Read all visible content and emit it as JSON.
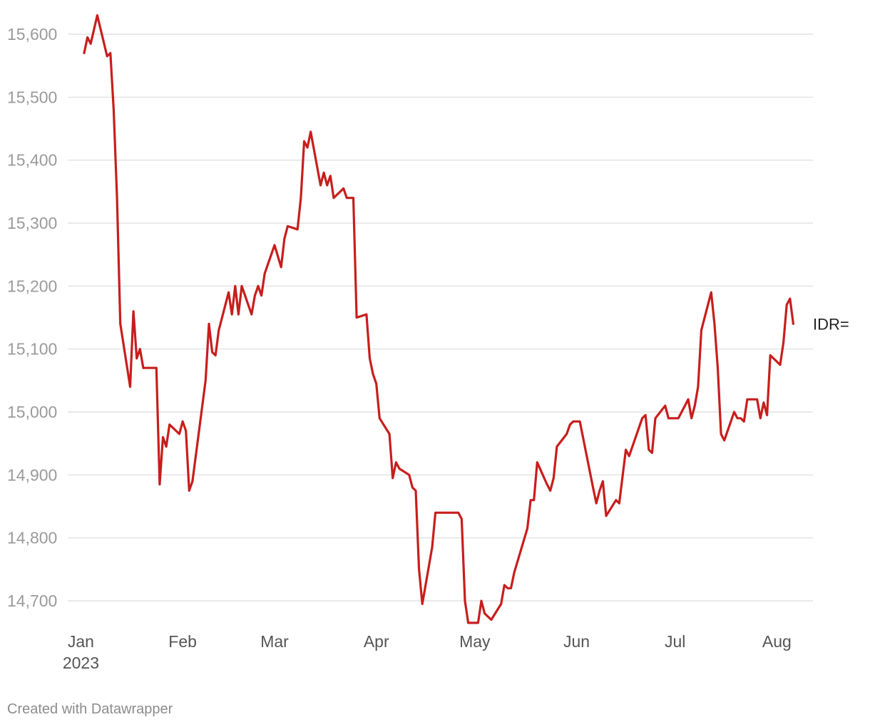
{
  "chart_data": {
    "type": "line",
    "title": "",
    "xlabel": "",
    "ylabel": "",
    "ylim": [
      14665,
      15630
    ],
    "y_ticks": [
      15600,
      15500,
      15400,
      15300,
      15200,
      15100,
      15000,
      14900,
      14800,
      14700
    ],
    "y_tick_labels": [
      "15,600",
      "15,500",
      "15,400",
      "15,300",
      "15,200",
      "15,100",
      "15,000",
      "14,900",
      "14,800",
      "14,700"
    ],
    "x_ticks": [
      {
        "date": "2023-01-01",
        "label": "Jan",
        "sublabel": "2023"
      },
      {
        "date": "2023-02-01",
        "label": "Feb"
      },
      {
        "date": "2023-03-01",
        "label": "Mar"
      },
      {
        "date": "2023-04-01",
        "label": "Apr"
      },
      {
        "date": "2023-05-01",
        "label": "May"
      },
      {
        "date": "2023-06-01",
        "label": "Jun"
      },
      {
        "date": "2023-07-01",
        "label": "Jul"
      },
      {
        "date": "2023-08-01",
        "label": "Aug"
      }
    ],
    "grid": true,
    "series": [
      {
        "name": "IDR=",
        "color": "#c71e1d",
        "points": [
          [
            "2023-01-02",
            15570
          ],
          [
            "2023-01-03",
            15595
          ],
          [
            "2023-01-04",
            15585
          ],
          [
            "2023-01-06",
            15630
          ],
          [
            "2023-01-09",
            15565
          ],
          [
            "2023-01-10",
            15570
          ],
          [
            "2023-01-11",
            15480
          ],
          [
            "2023-01-12",
            15340
          ],
          [
            "2023-01-13",
            15140
          ],
          [
            "2023-01-16",
            15040
          ],
          [
            "2023-01-17",
            15160
          ],
          [
            "2023-01-18",
            15085
          ],
          [
            "2023-01-19",
            15100
          ],
          [
            "2023-01-20",
            15070
          ],
          [
            "2023-01-24",
            15070
          ],
          [
            "2023-01-25",
            14885
          ],
          [
            "2023-01-26",
            14960
          ],
          [
            "2023-01-27",
            14945
          ],
          [
            "2023-01-28",
            14980
          ],
          [
            "2023-01-31",
            14965
          ],
          [
            "2023-02-01",
            14985
          ],
          [
            "2023-02-02",
            14970
          ],
          [
            "2023-02-03",
            14875
          ],
          [
            "2023-02-04",
            14890
          ],
          [
            "2023-02-06",
            14970
          ],
          [
            "2023-02-08",
            15050
          ],
          [
            "2023-02-09",
            15140
          ],
          [
            "2023-02-10",
            15095
          ],
          [
            "2023-02-11",
            15090
          ],
          [
            "2023-02-12",
            15130
          ],
          [
            "2023-02-15",
            15190
          ],
          [
            "2023-02-16",
            15155
          ],
          [
            "2023-02-17",
            15200
          ],
          [
            "2023-02-18",
            15155
          ],
          [
            "2023-02-19",
            15200
          ],
          [
            "2023-02-22",
            15155
          ],
          [
            "2023-02-23",
            15185
          ],
          [
            "2023-02-24",
            15200
          ],
          [
            "2023-02-25",
            15185
          ],
          [
            "2023-02-26",
            15220
          ],
          [
            "2023-03-01",
            15265
          ],
          [
            "2023-03-03",
            15230
          ],
          [
            "2023-03-04",
            15275
          ],
          [
            "2023-03-05",
            15295
          ],
          [
            "2023-03-08",
            15290
          ],
          [
            "2023-03-09",
            15340
          ],
          [
            "2023-03-10",
            15430
          ],
          [
            "2023-03-11",
            15420
          ],
          [
            "2023-03-12",
            15445
          ],
          [
            "2023-03-15",
            15360
          ],
          [
            "2023-03-16",
            15380
          ],
          [
            "2023-03-17",
            15360
          ],
          [
            "2023-03-18",
            15375
          ],
          [
            "2023-03-19",
            15340
          ],
          [
            "2023-03-22",
            15355
          ],
          [
            "2023-03-23",
            15340
          ],
          [
            "2023-03-25",
            15340
          ],
          [
            "2023-03-26",
            15150
          ],
          [
            "2023-03-29",
            15155
          ],
          [
            "2023-03-30",
            15085
          ],
          [
            "2023-03-31",
            15060
          ],
          [
            "2023-04-01",
            15045
          ],
          [
            "2023-04-02",
            14990
          ],
          [
            "2023-04-05",
            14965
          ],
          [
            "2023-04-06",
            14895
          ],
          [
            "2023-04-07",
            14920
          ],
          [
            "2023-04-08",
            14910
          ],
          [
            "2023-04-11",
            14900
          ],
          [
            "2023-04-12",
            14880
          ],
          [
            "2023-04-13",
            14875
          ],
          [
            "2023-04-14",
            14750
          ],
          [
            "2023-04-15",
            14695
          ],
          [
            "2023-04-18",
            14785
          ],
          [
            "2023-04-19",
            14840
          ],
          [
            "2023-04-26",
            14840
          ],
          [
            "2023-04-27",
            14830
          ],
          [
            "2023-04-28",
            14700
          ],
          [
            "2023-04-29",
            14665
          ],
          [
            "2023-05-02",
            14665
          ],
          [
            "2023-05-03",
            14700
          ],
          [
            "2023-05-04",
            14680
          ],
          [
            "2023-05-06",
            14670
          ],
          [
            "2023-05-09",
            14695
          ],
          [
            "2023-05-10",
            14725
          ],
          [
            "2023-05-11",
            14720
          ],
          [
            "2023-05-12",
            14720
          ],
          [
            "2023-05-13",
            14745
          ],
          [
            "2023-05-17",
            14815
          ],
          [
            "2023-05-18",
            14860
          ],
          [
            "2023-05-19",
            14860
          ],
          [
            "2023-05-20",
            14920
          ],
          [
            "2023-05-23",
            14885
          ],
          [
            "2023-05-24",
            14875
          ],
          [
            "2023-05-25",
            14895
          ],
          [
            "2023-05-26",
            14945
          ],
          [
            "2023-05-29",
            14965
          ],
          [
            "2023-05-30",
            14980
          ],
          [
            "2023-05-31",
            14985
          ],
          [
            "2023-06-02",
            14985
          ],
          [
            "2023-06-06",
            14880
          ],
          [
            "2023-06-07",
            14855
          ],
          [
            "2023-06-08",
            14875
          ],
          [
            "2023-06-09",
            14890
          ],
          [
            "2023-06-10",
            14835
          ],
          [
            "2023-06-13",
            14860
          ],
          [
            "2023-06-14",
            14855
          ],
          [
            "2023-06-16",
            14940
          ],
          [
            "2023-06-17",
            14930
          ],
          [
            "2023-06-21",
            14990
          ],
          [
            "2023-06-22",
            14995
          ],
          [
            "2023-06-23",
            14940
          ],
          [
            "2023-06-24",
            14935
          ],
          [
            "2023-06-25",
            14990
          ],
          [
            "2023-06-28",
            15010
          ],
          [
            "2023-06-29",
            14990
          ],
          [
            "2023-07-02",
            14990
          ],
          [
            "2023-07-05",
            15020
          ],
          [
            "2023-07-06",
            14990
          ],
          [
            "2023-07-07",
            15010
          ],
          [
            "2023-07-08",
            15040
          ],
          [
            "2023-07-09",
            15130
          ],
          [
            "2023-07-12",
            15190
          ],
          [
            "2023-07-13",
            15140
          ],
          [
            "2023-07-14",
            15070
          ],
          [
            "2023-07-15",
            14965
          ],
          [
            "2023-07-16",
            14955
          ],
          [
            "2023-07-19",
            15000
          ],
          [
            "2023-07-20",
            14990
          ],
          [
            "2023-07-21",
            14990
          ],
          [
            "2023-07-22",
            14985
          ],
          [
            "2023-07-23",
            15020
          ],
          [
            "2023-07-26",
            15020
          ],
          [
            "2023-07-27",
            14990
          ],
          [
            "2023-07-28",
            15015
          ],
          [
            "2023-07-29",
            14995
          ],
          [
            "2023-07-30",
            15090
          ],
          [
            "2023-08-02",
            15075
          ],
          [
            "2023-08-03",
            15110
          ],
          [
            "2023-08-04",
            15170
          ],
          [
            "2023-08-05",
            15180
          ],
          [
            "2023-08-06",
            15140
          ]
        ]
      }
    ]
  },
  "credit": "Created with Datawrapper"
}
